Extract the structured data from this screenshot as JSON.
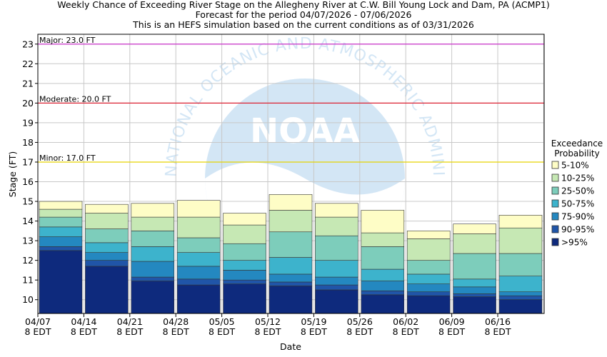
{
  "chart_data": {
    "type": "bar",
    "stacked": true,
    "title": [
      "Weekly Chance of Exceeding River Stage on the Allegheny River at C.W. Bill Young Lock and Dam, PA (ACMP1)",
      "Forecast for the period 04/07/2026 - 07/06/2026",
      "This is an HEFS simulation based on the current conditions as of 03/31/2026"
    ],
    "xlabel": "Date",
    "ylabel": "Stage (FT)",
    "ylim": [
      9.3,
      23.5
    ],
    "yticks": [
      10,
      11,
      12,
      13,
      14,
      15,
      16,
      17,
      18,
      19,
      20,
      21,
      22,
      23
    ],
    "xticks": [
      {
        "line1": "04/07",
        "line2": "8 EDT"
      },
      {
        "line1": "04/14",
        "line2": "8 EDT"
      },
      {
        "line1": "04/21",
        "line2": "8 EDT"
      },
      {
        "line1": "04/28",
        "line2": "8 EDT"
      },
      {
        "line1": "05/05",
        "line2": "8 EDT"
      },
      {
        "line1": "05/12",
        "line2": "8 EDT"
      },
      {
        "line1": "05/19",
        "line2": "8 EDT"
      },
      {
        "line1": "05/26",
        "line2": "8 EDT"
      },
      {
        "line1": "06/02",
        "line2": "8 EDT"
      },
      {
        "line1": "06/09",
        "line2": "8 EDT"
      },
      {
        "line1": "06/16",
        "line2": "8 EDT"
      }
    ],
    "thresholds": [
      {
        "label": "Major: 23.0 FT",
        "value": 23.0,
        "color": "#cc33cc"
      },
      {
        "label": "Moderate: 20.0 FT",
        "value": 20.0,
        "color": "#dd2233"
      },
      {
        "label": "Minor: 17.0 FT",
        "value": 17.0,
        "color": "#e6d400"
      }
    ],
    "legend": {
      "title_line1": "Exceedance",
      "title_line2": "Probability",
      "placement": "right"
    },
    "series": [
      {
        "name": ">95%",
        "color": "#0e2a7d"
      },
      {
        "name": "90-95%",
        "color": "#2055a8"
      },
      {
        "name": "75-90%",
        "color": "#2488c0"
      },
      {
        "name": "50-75%",
        "color": "#3db3cc"
      },
      {
        "name": "25-50%",
        "color": "#7dcdbb"
      },
      {
        "name": "10-25%",
        "color": "#c6e8b4"
      },
      {
        "name": "5-10%",
        "color": "#fefdc6"
      }
    ],
    "weeks": [
      {
        "tops": [
          12.5,
          12.7,
          13.2,
          13.7,
          14.2,
          14.6,
          15.0
        ]
      },
      {
        "tops": [
          11.7,
          12.0,
          12.4,
          12.9,
          13.6,
          14.4,
          14.85
        ]
      },
      {
        "tops": [
          10.95,
          11.15,
          11.95,
          12.7,
          13.5,
          14.2,
          14.9
        ]
      },
      {
        "tops": [
          10.75,
          11.05,
          11.7,
          12.4,
          13.15,
          14.2,
          15.05
        ]
      },
      {
        "tops": [
          10.8,
          11.0,
          11.5,
          12.0,
          12.85,
          13.8,
          14.4
        ]
      },
      {
        "tops": [
          10.7,
          10.9,
          11.3,
          12.15,
          13.45,
          14.55,
          15.35
        ]
      },
      {
        "tops": [
          10.5,
          10.75,
          11.15,
          12.0,
          13.25,
          14.2,
          14.9
        ]
      },
      {
        "tops": [
          10.25,
          10.45,
          10.95,
          11.55,
          12.7,
          13.4,
          14.55
        ]
      },
      {
        "tops": [
          10.2,
          10.4,
          10.8,
          11.3,
          12.0,
          13.1,
          13.5
        ]
      },
      {
        "tops": [
          10.15,
          10.3,
          10.65,
          11.05,
          12.35,
          13.35,
          13.85
        ]
      },
      {
        "tops": [
          10.0,
          10.2,
          10.4,
          11.2,
          12.35,
          13.65,
          14.3
        ]
      }
    ],
    "watermark": {
      "center": "NOAA",
      "ring": "NATIONAL OCEANIC AND ATMOSPHERIC ADMINISTRATION"
    },
    "grid": true
  }
}
